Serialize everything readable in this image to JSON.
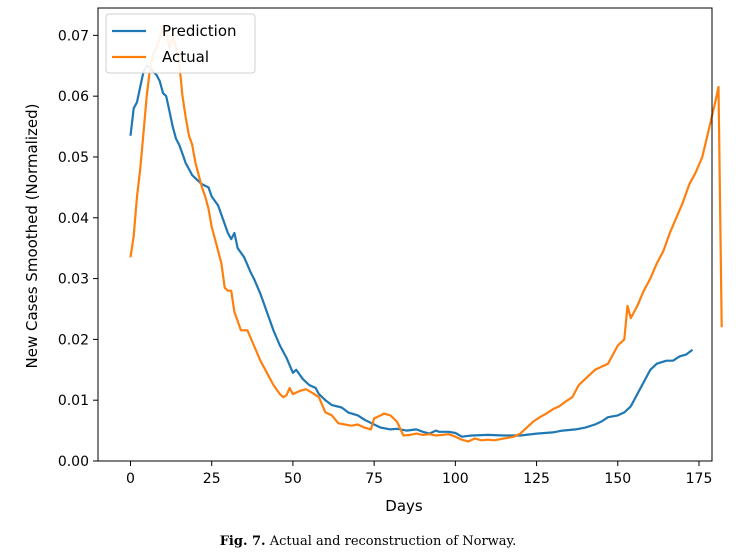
{
  "caption": {
    "label": "Fig. 7.",
    "text": "Actual and reconstruction of Norway."
  },
  "chart_data": {
    "type": "line",
    "title": "",
    "xlabel": "Days",
    "ylabel": "New Cases Smoothed (Normalized)",
    "xlim": [
      -10,
      179
    ],
    "ylim": [
      0,
      0.0745
    ],
    "x_ticks": [
      0,
      25,
      50,
      75,
      100,
      125,
      150,
      175
    ],
    "x_tick_labels": [
      "0",
      "25",
      "50",
      "75",
      "100",
      "125",
      "150",
      "175"
    ],
    "y_ticks": [
      0,
      0.01,
      0.02,
      0.03,
      0.04,
      0.05,
      0.06,
      0.07
    ],
    "y_tick_labels": [
      "0.00",
      "0.01",
      "0.02",
      "0.03",
      "0.04",
      "0.05",
      "0.06",
      "0.07"
    ],
    "grid": false,
    "legend": "top-left",
    "series": [
      {
        "name": "Prediction",
        "color": "#1f77b4",
        "points": [
          [
            0,
            0.0535
          ],
          [
            1,
            0.058
          ],
          [
            2,
            0.059
          ],
          [
            3,
            0.0615
          ],
          [
            4,
            0.064
          ],
          [
            5,
            0.065
          ],
          [
            6,
            0.0648
          ],
          [
            7,
            0.064
          ],
          [
            8,
            0.0635
          ],
          [
            9,
            0.0625
          ],
          [
            10,
            0.0605
          ],
          [
            11,
            0.06
          ],
          [
            12,
            0.0575
          ],
          [
            13,
            0.055
          ],
          [
            14,
            0.053
          ],
          [
            15,
            0.052
          ],
          [
            16,
            0.0505
          ],
          [
            17,
            0.049
          ],
          [
            18,
            0.048
          ],
          [
            19,
            0.047
          ],
          [
            20,
            0.0465
          ],
          [
            22,
            0.0455
          ],
          [
            24,
            0.045
          ],
          [
            25,
            0.0435
          ],
          [
            27,
            0.042
          ],
          [
            28,
            0.0405
          ],
          [
            30,
            0.0375
          ],
          [
            31,
            0.0365
          ],
          [
            32,
            0.0375
          ],
          [
            33,
            0.035
          ],
          [
            35,
            0.0335
          ],
          [
            37,
            0.031
          ],
          [
            38,
            0.03
          ],
          [
            40,
            0.0275
          ],
          [
            42,
            0.0245
          ],
          [
            44,
            0.0215
          ],
          [
            46,
            0.019
          ],
          [
            48,
            0.017
          ],
          [
            50,
            0.0145
          ],
          [
            51,
            0.015
          ],
          [
            53,
            0.0135
          ],
          [
            55,
            0.0125
          ],
          [
            57,
            0.012
          ],
          [
            58,
            0.011
          ],
          [
            60,
            0.01
          ],
          [
            62,
            0.0092
          ],
          [
            65,
            0.0088
          ],
          [
            67,
            0.008
          ],
          [
            70,
            0.0075
          ],
          [
            72,
            0.0068
          ],
          [
            75,
            0.006
          ],
          [
            77,
            0.0055
          ],
          [
            80,
            0.0052
          ],
          [
            82,
            0.0053
          ],
          [
            85,
            0.005
          ],
          [
            88,
            0.0052
          ],
          [
            90,
            0.0048
          ],
          [
            92,
            0.0045
          ],
          [
            94,
            0.005
          ],
          [
            95,
            0.0048
          ],
          [
            98,
            0.0048
          ],
          [
            100,
            0.0046
          ],
          [
            102,
            0.004
          ],
          [
            105,
            0.0042
          ],
          [
            110,
            0.0043
          ],
          [
            115,
            0.0042
          ],
          [
            120,
            0.0042
          ],
          [
            125,
            0.0045
          ],
          [
            130,
            0.0047
          ],
          [
            133,
            0.005
          ],
          [
            137,
            0.0052
          ],
          [
            140,
            0.0055
          ],
          [
            143,
            0.006
          ],
          [
            145,
            0.0065
          ],
          [
            147,
            0.0072
          ],
          [
            150,
            0.0075
          ],
          [
            152,
            0.008
          ],
          [
            154,
            0.009
          ],
          [
            156,
            0.011
          ],
          [
            158,
            0.013
          ],
          [
            160,
            0.015
          ],
          [
            162,
            0.016
          ],
          [
            165,
            0.0165
          ],
          [
            167,
            0.0165
          ],
          [
            169,
            0.0172
          ],
          [
            171,
            0.0175
          ],
          [
            173,
            0.0183
          ]
        ]
      },
      {
        "name": "Actual",
        "color": "#ff7f0e",
        "points": [
          [
            0,
            0.0335
          ],
          [
            1,
            0.037
          ],
          [
            2,
            0.0435
          ],
          [
            3,
            0.048
          ],
          [
            4,
            0.054
          ],
          [
            5,
            0.06
          ],
          [
            6,
            0.0645
          ],
          [
            7,
            0.067
          ],
          [
            8,
            0.068
          ],
          [
            9,
            0.0695
          ],
          [
            10,
            0.0715
          ],
          [
            11,
            0.0705
          ],
          [
            12,
            0.068
          ],
          [
            13,
            0.07
          ],
          [
            14,
            0.068
          ],
          [
            15,
            0.0655
          ],
          [
            16,
            0.06
          ],
          [
            17,
            0.0565
          ],
          [
            18,
            0.0535
          ],
          [
            19,
            0.052
          ],
          [
            20,
            0.049
          ],
          [
            21,
            0.047
          ],
          [
            22,
            0.045
          ],
          [
            23,
            0.0435
          ],
          [
            24,
            0.0415
          ],
          [
            25,
            0.0385
          ],
          [
            26,
            0.0365
          ],
          [
            27,
            0.0345
          ],
          [
            28,
            0.0325
          ],
          [
            29,
            0.0285
          ],
          [
            30,
            0.028
          ],
          [
            31,
            0.028
          ],
          [
            32,
            0.0245
          ],
          [
            33,
            0.023
          ],
          [
            34,
            0.0215
          ],
          [
            36,
            0.0215
          ],
          [
            38,
            0.019
          ],
          [
            40,
            0.0165
          ],
          [
            42,
            0.0145
          ],
          [
            44,
            0.0125
          ],
          [
            46,
            0.011
          ],
          [
            47,
            0.0105
          ],
          [
            48,
            0.0108
          ],
          [
            49,
            0.012
          ],
          [
            50,
            0.011
          ],
          [
            52,
            0.0115
          ],
          [
            54,
            0.0118
          ],
          [
            56,
            0.0112
          ],
          [
            58,
            0.0105
          ],
          [
            60,
            0.008
          ],
          [
            62,
            0.0075
          ],
          [
            64,
            0.0062
          ],
          [
            66,
            0.006
          ],
          [
            68,
            0.0058
          ],
          [
            70,
            0.006
          ],
          [
            72,
            0.0055
          ],
          [
            74,
            0.0052
          ],
          [
            75,
            0.007
          ],
          [
            77,
            0.0075
          ],
          [
            78,
            0.0078
          ],
          [
            80,
            0.0075
          ],
          [
            82,
            0.0065
          ],
          [
            84,
            0.0042
          ],
          [
            86,
            0.0043
          ],
          [
            88,
            0.0045
          ],
          [
            90,
            0.0043
          ],
          [
            92,
            0.0044
          ],
          [
            94,
            0.0042
          ],
          [
            96,
            0.0043
          ],
          [
            98,
            0.0044
          ],
          [
            100,
            0.004
          ],
          [
            102,
            0.0035
          ],
          [
            104,
            0.0032
          ],
          [
            106,
            0.0037
          ],
          [
            108,
            0.0034
          ],
          [
            110,
            0.0035
          ],
          [
            112,
            0.0034
          ],
          [
            114,
            0.0036
          ],
          [
            116,
            0.0038
          ],
          [
            118,
            0.004
          ],
          [
            120,
            0.0045
          ],
          [
            122,
            0.0055
          ],
          [
            124,
            0.0065
          ],
          [
            126,
            0.0072
          ],
          [
            128,
            0.0078
          ],
          [
            130,
            0.0085
          ],
          [
            132,
            0.009
          ],
          [
            134,
            0.0098
          ],
          [
            136,
            0.0105
          ],
          [
            138,
            0.0125
          ],
          [
            140,
            0.0135
          ],
          [
            142,
            0.0145
          ],
          [
            143,
            0.015
          ],
          [
            145,
            0.0155
          ],
          [
            147,
            0.016
          ],
          [
            149,
            0.018
          ],
          [
            150,
            0.019
          ],
          [
            152,
            0.02
          ],
          [
            153,
            0.0255
          ],
          [
            154,
            0.0235
          ],
          [
            156,
            0.0255
          ],
          [
            158,
            0.028
          ],
          [
            160,
            0.03
          ],
          [
            162,
            0.0325
          ],
          [
            164,
            0.0345
          ],
          [
            166,
            0.0375
          ],
          [
            168,
            0.04
          ],
          [
            170,
            0.0425
          ],
          [
            172,
            0.0455
          ],
          [
            174,
            0.0475
          ],
          [
            176,
            0.05
          ],
          [
            178,
            0.0545
          ],
          [
            180,
            0.059
          ],
          [
            181,
            0.0615
          ],
          [
            182,
            0.022
          ]
        ]
      }
    ]
  }
}
